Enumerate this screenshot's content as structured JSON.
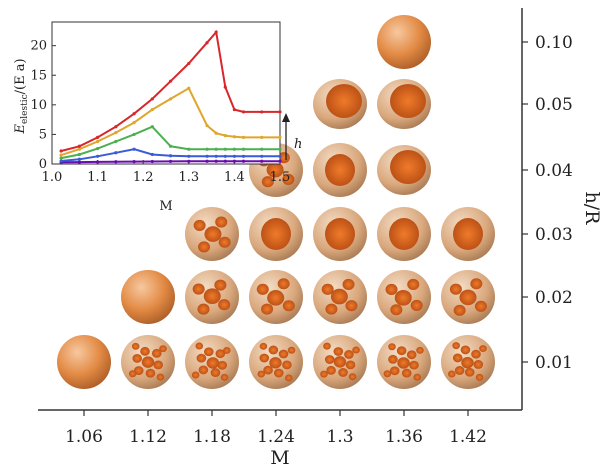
{
  "chart_data": [
    {
      "type": "scatter",
      "title": "",
      "xlabel": "M",
      "ylabel": "h/R",
      "x_ticks": [
        "1.06",
        "1.12",
        "1.18",
        "1.24",
        "1.3",
        "1.36",
        "1.42"
      ],
      "y_ticks": [
        "0.01",
        "0.02",
        "0.03",
        "0.04",
        "0.05",
        "0.10"
      ],
      "grid": false,
      "description_shapes": [
        {
          "M": 1.06,
          "hR": "0.01",
          "shape": "smooth-sphere"
        },
        {
          "M": 1.12,
          "hR": "0.01",
          "shape": "many-dimples"
        },
        {
          "M": 1.18,
          "hR": "0.01",
          "shape": "many-dimples"
        },
        {
          "M": 1.24,
          "hR": "0.01",
          "shape": "many-dimples"
        },
        {
          "M": 1.3,
          "hR": "0.01",
          "shape": "many-dimples"
        },
        {
          "M": 1.36,
          "hR": "0.01",
          "shape": "many-dimples"
        },
        {
          "M": 1.42,
          "hR": "0.01",
          "shape": "many-dimples"
        },
        {
          "M": 1.12,
          "hR": "0.02",
          "shape": "smooth-sphere"
        },
        {
          "M": 1.18,
          "hR": "0.02",
          "shape": "few-dimples"
        },
        {
          "M": 1.24,
          "hR": "0.02",
          "shape": "few-dimples"
        },
        {
          "M": 1.3,
          "hR": "0.02",
          "shape": "few-dimples"
        },
        {
          "M": 1.36,
          "hR": "0.02",
          "shape": "few-dimples"
        },
        {
          "M": 1.42,
          "hR": "0.02",
          "shape": "few-dimples"
        },
        {
          "M": 1.18,
          "hR": "0.03",
          "shape": "few-dimples"
        },
        {
          "M": 1.24,
          "hR": "0.03",
          "shape": "single-dimple"
        },
        {
          "M": 1.3,
          "hR": "0.03",
          "shape": "single-dimple"
        },
        {
          "M": 1.36,
          "hR": "0.03",
          "shape": "single-dimple"
        },
        {
          "M": 1.42,
          "hR": "0.03",
          "shape": "single-dimple"
        },
        {
          "M": 1.24,
          "hR": "0.04",
          "shape": "few-dimples"
        },
        {
          "M": 1.3,
          "hR": "0.04",
          "shape": "single-dimple"
        },
        {
          "M": 1.36,
          "hR": "0.04",
          "shape": "cup"
        },
        {
          "M": 1.3,
          "hR": "0.05",
          "shape": "cup"
        },
        {
          "M": 1.36,
          "hR": "0.05",
          "shape": "cup"
        },
        {
          "M": 1.36,
          "hR": "0.10",
          "shape": "smooth-sphere"
        }
      ],
      "colors": {
        "shell_light": "#f5c49a",
        "shell_mid": "#e38b45",
        "shell_dark": "#b5672e",
        "dimple": "#e5631a",
        "ridge": "#f1dfc8"
      }
    },
    {
      "type": "line",
      "title": "",
      "xlabel": "M",
      "ylabel_main": "E",
      "ylabel_sub": "elestic",
      "ylabel_tail": "/(E a)",
      "xlim": [
        1.0,
        1.5
      ],
      "ylim": [
        0,
        24
      ],
      "x_ticks": [
        "1.0",
        "1.1",
        "1.2",
        "1.3",
        "1.4",
        "1.5"
      ],
      "y_ticks": [
        "0",
        "5",
        "10",
        "15",
        "20"
      ],
      "arrow_label": "h",
      "x": [
        1.02,
        1.06,
        1.1,
        1.14,
        1.18,
        1.22,
        1.26,
        1.3,
        1.34,
        1.36,
        1.38,
        1.4,
        1.42,
        1.46,
        1.5
      ],
      "series": [
        {
          "color": "#6a0dad",
          "values": [
            0.3,
            0.32,
            0.35,
            0.38,
            0.4,
            0.42,
            0.44,
            0.45,
            0.46,
            0.46,
            0.46,
            0.46,
            0.46,
            0.46,
            0.46
          ]
        },
        {
          "color": "#3a5bd9",
          "values": [
            0.5,
            0.8,
            1.3,
            1.9,
            2.5,
            1.6,
            1.4,
            1.3,
            1.3,
            1.3,
            1.3,
            1.3,
            1.3,
            1.3,
            1.3
          ]
        },
        {
          "color": "#4caf50",
          "values": [
            1.0,
            1.6,
            2.6,
            3.8,
            5.0,
            6.3,
            3.0,
            2.5,
            2.5,
            2.5,
            2.5,
            2.5,
            2.5,
            2.5,
            2.5
          ]
        },
        {
          "color": "#e0a52c",
          "values": [
            1.5,
            2.5,
            3.8,
            5.3,
            7.0,
            9.2,
            11.0,
            12.8,
            6.5,
            5.2,
            4.8,
            4.6,
            4.5,
            4.5,
            4.5
          ]
        },
        {
          "color": "#d8262b",
          "values": [
            2.2,
            3.0,
            4.5,
            6.3,
            8.5,
            11.0,
            14.0,
            17.0,
            20.5,
            22.3,
            13.0,
            9.2,
            8.8,
            8.8,
            8.8
          ]
        }
      ]
    }
  ]
}
